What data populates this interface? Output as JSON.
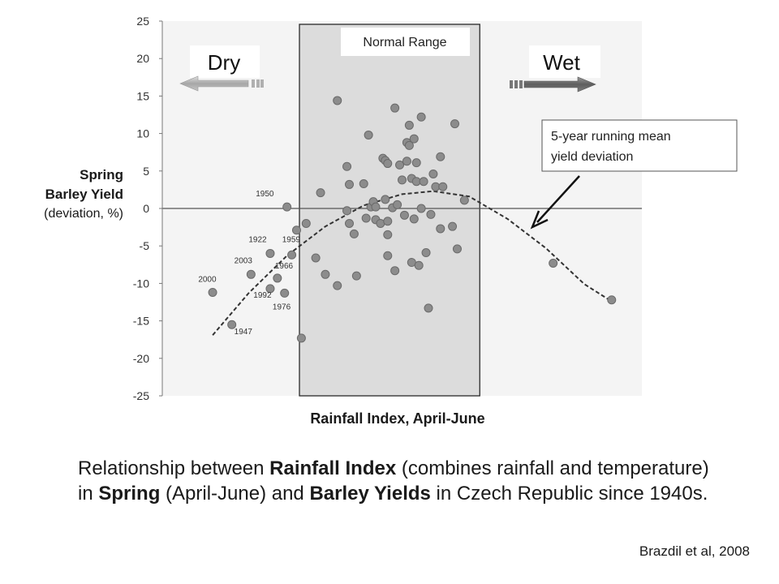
{
  "chart_data": {
    "type": "scatter",
    "ylabel_line1": "Spring",
    "ylabel_line2": "Barley Yield",
    "ylabel_line3": "(deviation, %)",
    "xlabel": "Rainfall Index, April-June",
    "ylim": [
      -25,
      25
    ],
    "xlim": [
      0,
      100
    ],
    "yticks": [
      "25",
      "20",
      "15",
      "10",
      "5",
      "0",
      "-5",
      "-10",
      "-15",
      "-20",
      "-25"
    ],
    "normal_range": {
      "label": "Normal Range",
      "x": [
        28.6,
        66.2
      ]
    },
    "dry_label": "Dry",
    "wet_label": "Wet",
    "mean_curve_label": "5-year running mean yield deviation",
    "mean_curve": {
      "x": [
        10.5,
        18,
        26,
        34,
        42,
        50,
        56.5,
        64,
        72,
        80,
        88,
        93.7
      ],
      "y": [
        -16.9,
        -11.3,
        -6.3,
        -2.4,
        0.4,
        1.9,
        2.3,
        1.6,
        -1.4,
        -5.3,
        -10.1,
        -12.4
      ]
    },
    "series": [
      {
        "values": [
          [
            10.5,
            -11.2
          ],
          [
            14.5,
            -15.5
          ],
          [
            18.5,
            -8.8
          ],
          [
            22.5,
            -6
          ],
          [
            22.5,
            -10.7
          ],
          [
            24,
            -9.3
          ],
          [
            25.5,
            -11.3
          ],
          [
            26,
            0.2
          ],
          [
            27,
            -6.2
          ],
          [
            28,
            -2.9
          ],
          [
            29,
            -17.3
          ],
          [
            30,
            -2
          ],
          [
            32,
            -6.6
          ],
          [
            33,
            2.1
          ],
          [
            34,
            -8.8
          ],
          [
            36.5,
            -10.3
          ],
          [
            36.5,
            14.4
          ],
          [
            38.5,
            5.6
          ],
          [
            38.5,
            -0.3
          ],
          [
            39,
            -2
          ],
          [
            39,
            3.2
          ],
          [
            40,
            -3.4
          ],
          [
            40.5,
            -9
          ],
          [
            42,
            3.3
          ],
          [
            42.5,
            -1.3
          ],
          [
            43,
            9.8
          ],
          [
            43.5,
            0.2
          ],
          [
            44,
            0.9
          ],
          [
            44.5,
            0.2
          ],
          [
            44.5,
            -1.5
          ],
          [
            45.5,
            -2
          ],
          [
            46,
            6.7
          ],
          [
            46.5,
            1.2
          ],
          [
            46.5,
            6.4
          ],
          [
            47,
            -1.7
          ],
          [
            47,
            -3.5
          ],
          [
            47,
            -6.3
          ],
          [
            47,
            6
          ],
          [
            48,
            0.1
          ],
          [
            48.5,
            13.4
          ],
          [
            48.5,
            -8.3
          ],
          [
            49,
            0.5
          ],
          [
            49.5,
            5.8
          ],
          [
            50,
            3.8
          ],
          [
            50.5,
            -0.9
          ],
          [
            51,
            8.8
          ],
          [
            51,
            6.3
          ],
          [
            51.5,
            11.1
          ],
          [
            51.5,
            8.4
          ],
          [
            52,
            4
          ],
          [
            52,
            -7.2
          ],
          [
            52.5,
            -1.4
          ],
          [
            52.5,
            9.3
          ],
          [
            53,
            6.1
          ],
          [
            53,
            3.6
          ],
          [
            53.5,
            -7.6
          ],
          [
            54,
            12.2
          ],
          [
            54,
            0
          ],
          [
            54.5,
            3.6
          ],
          [
            55,
            -5.9
          ],
          [
            55.5,
            -13.3
          ],
          [
            56,
            -0.8
          ],
          [
            56.5,
            4.6
          ],
          [
            57,
            2.9
          ],
          [
            58,
            6.9
          ],
          [
            58,
            -2.7
          ],
          [
            58.5,
            2.9
          ],
          [
            60.5,
            -2.4
          ],
          [
            61,
            11.3
          ],
          [
            61.5,
            -5.4
          ],
          [
            63,
            1.1
          ],
          [
            81.5,
            -7.3
          ],
          [
            93.7,
            -12.2
          ]
        ]
      }
    ],
    "point_labels": [
      {
        "text": "1950",
        "x": 19.5,
        "y": 1.6
      },
      {
        "text": "1922",
        "x": 18,
        "y": -4.5
      },
      {
        "text": "1959",
        "x": 25,
        "y": -4.5
      },
      {
        "text": "2003",
        "x": 15,
        "y": -7.3
      },
      {
        "text": "1966",
        "x": 23.5,
        "y": -8
      },
      {
        "text": "2000",
        "x": 7.5,
        "y": -9.8
      },
      {
        "text": "1992",
        "x": 19,
        "y": -11.9
      },
      {
        "text": "1976",
        "x": 23,
        "y": -13.5
      },
      {
        "text": "1947",
        "x": 15,
        "y": -16.8
      }
    ]
  },
  "caption": {
    "p1": "Relationship between ",
    "b1": "Rainfall Index",
    "p2": " (combines rainfall and temperature) in ",
    "b2": "Spring",
    "p3": " (April-June) and  ",
    "b3": "Barley Yields",
    "p4": " in Czech Republic since 1940s."
  },
  "source": "Brazdil et al, 2008",
  "colors": {
    "point": "#8c8c8c",
    "point_edge": "#6a6a6a",
    "normal_range_fill": "#dcdcdc",
    "plot_background": "#f4f4f4",
    "dry_arrow": "#a8a8a8",
    "wet_arrow": "#6a6a6a",
    "curve": "#333333"
  }
}
